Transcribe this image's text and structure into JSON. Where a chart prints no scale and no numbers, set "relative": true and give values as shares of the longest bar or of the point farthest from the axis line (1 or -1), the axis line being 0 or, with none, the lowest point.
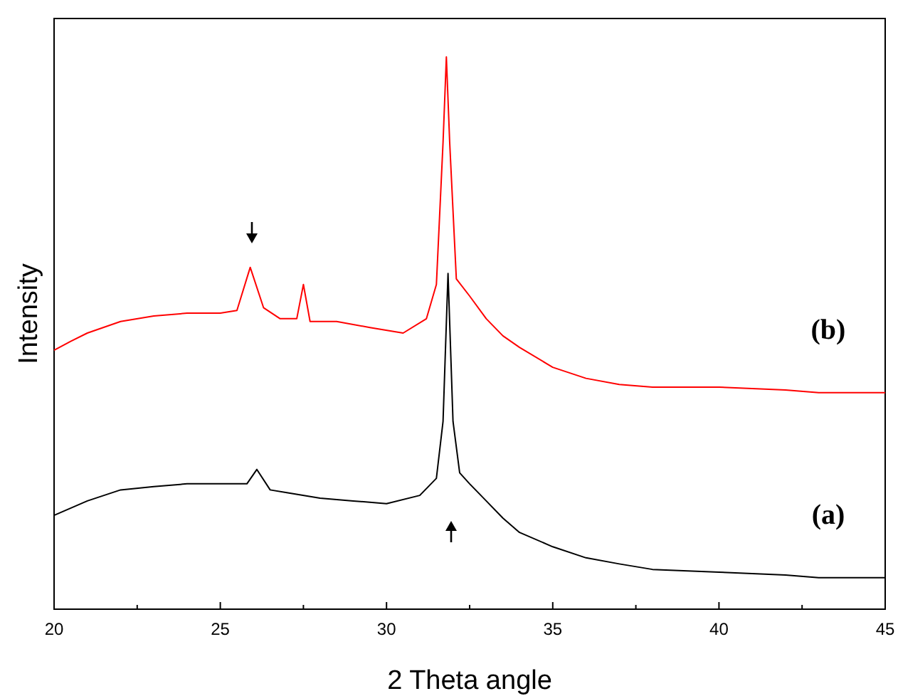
{
  "chart_data": {
    "type": "line",
    "xlabel": "2 Theta angle",
    "ylabel": "Intensity",
    "relative": true,
    "xlim": [
      20,
      45
    ],
    "xticks": [
      20,
      {
        "value": 22.5,
        "label": null
      },
      25,
      {
        "value": 27.5,
        "label": null
      },
      30,
      {
        "value": 32.5,
        "label": null
      },
      35,
      {
        "value": 37.5,
        "label": null
      },
      40,
      {
        "value": 42.5,
        "label": null
      },
      45
    ],
    "series": [
      {
        "name": "(b)",
        "color": "#ff0000",
        "x": [
          20,
          20.5,
          21,
          22,
          23,
          24,
          25,
          25.5,
          25.9,
          26.3,
          26.8,
          27.3,
          27.5,
          27.7,
          28.5,
          29.5,
          30.5,
          31.2,
          31.5,
          31.7,
          31.8,
          31.9,
          32.1,
          32.5,
          33,
          33.5,
          34,
          35,
          36,
          37,
          38,
          40,
          42,
          43,
          45
        ],
        "values": [
          0.469,
          0.485,
          0.5,
          0.521,
          0.531,
          0.536,
          0.536,
          0.541,
          0.619,
          0.546,
          0.526,
          0.526,
          0.588,
          0.521,
          0.521,
          0.51,
          0.5,
          0.526,
          0.588,
          0.845,
          1,
          0.845,
          0.598,
          0.567,
          0.526,
          0.495,
          0.474,
          0.438,
          0.418,
          0.407,
          0.402,
          0.402,
          0.397,
          0.392,
          0.392
        ]
      },
      {
        "name": "(a)",
        "color": "#000000",
        "x": [
          20,
          21,
          22,
          23,
          24,
          25,
          25.8,
          26.1,
          26.5,
          27,
          28,
          29,
          30,
          31,
          31.5,
          31.7,
          31.85,
          32,
          32.2,
          32.5,
          33,
          33.5,
          34,
          35,
          36,
          37,
          38,
          40,
          42,
          43,
          45
        ],
        "values": [
          0.17,
          0.196,
          0.216,
          0.222,
          0.227,
          0.227,
          0.227,
          0.253,
          0.216,
          0.211,
          0.201,
          0.196,
          0.191,
          0.206,
          0.237,
          0.34,
          0.608,
          0.34,
          0.247,
          0.227,
          0.196,
          0.165,
          0.139,
          0.113,
          0.093,
          0.082,
          0.072,
          0.067,
          0.062,
          0.057,
          0.057
        ]
      }
    ]
  }
}
